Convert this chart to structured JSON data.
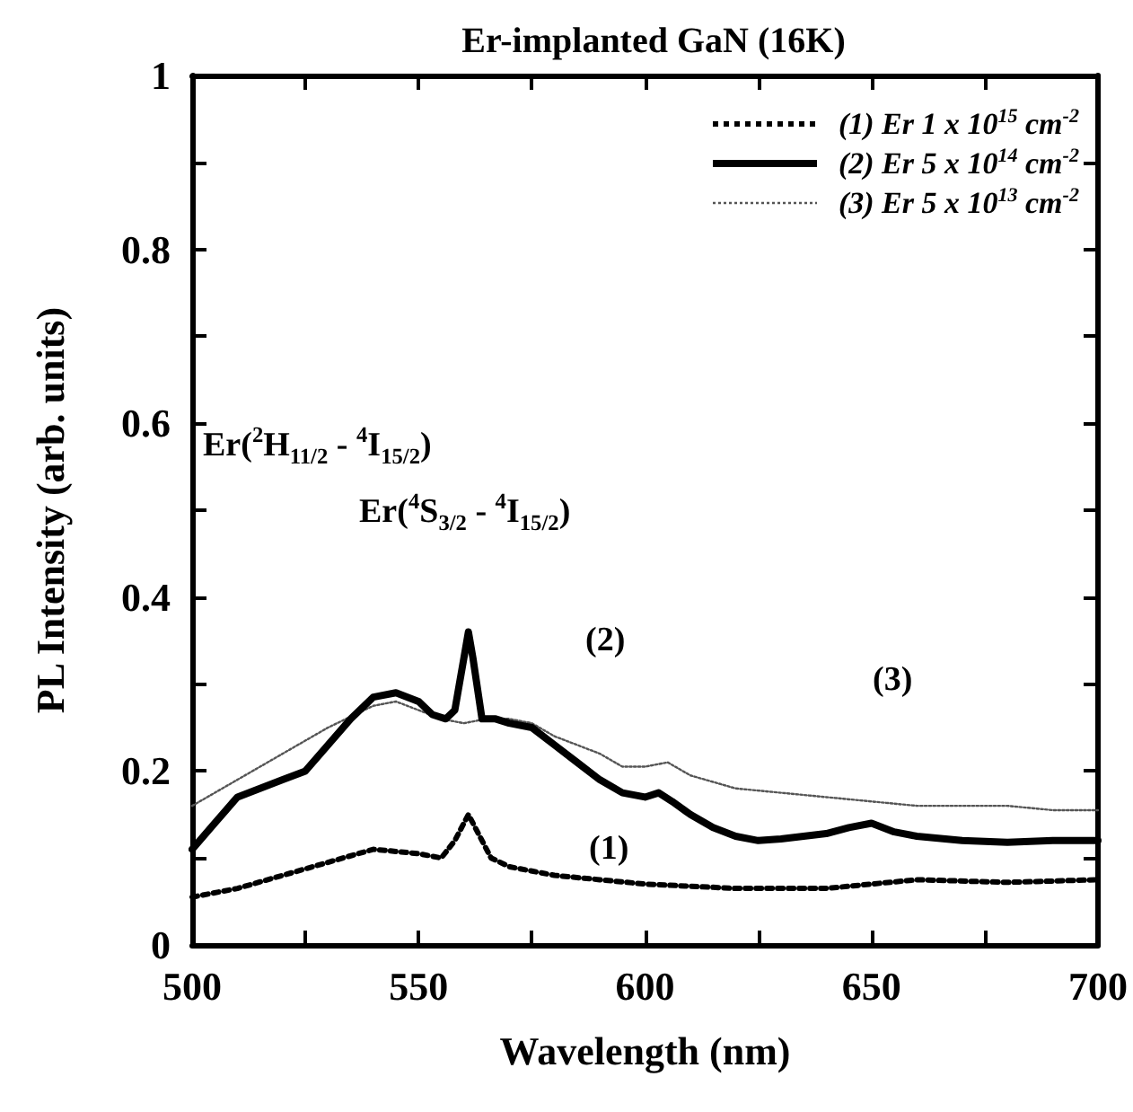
{
  "chart_data": {
    "type": "line",
    "title": "Er-implanted GaN (16K)",
    "xlabel": "Wavelength (nm)",
    "ylabel": "PL Intensity (arb. units)",
    "xlim": [
      500,
      700
    ],
    "xticks": [
      500,
      {
        "value": 525,
        "label": null
      },
      550,
      {
        "value": 575,
        "label": null
      },
      600,
      {
        "value": 625,
        "label": null
      },
      650,
      {
        "value": 675,
        "label": null
      },
      700
    ],
    "ylim": [
      0,
      1
    ],
    "yticks": [
      0,
      {
        "value": 0.1,
        "label": null
      },
      0.2,
      {
        "value": 0.3,
        "label": null
      },
      0.4,
      {
        "value": 0.5,
        "label": null
      },
      0.6,
      {
        "value": 0.7,
        "label": null
      },
      0.8,
      {
        "value": 0.9,
        "label": null
      },
      1
    ],
    "grid": false,
    "legend": "top right",
    "marker": "none",
    "series": [
      {
        "name": "(1) Er  1 x 10$^{15}$ cm$^{-2}$",
        "color": "#000000",
        "line_style": "dotted",
        "x": [
          500,
          510,
          520,
          530,
          540,
          550,
          555,
          558,
          561,
          563,
          566,
          570,
          580,
          590,
          600,
          620,
          640,
          660,
          680,
          700
        ],
        "values": [
          0.055,
          0.065,
          0.08,
          0.095,
          0.11,
          0.105,
          0.1,
          0.12,
          0.15,
          0.13,
          0.1,
          0.09,
          0.08,
          0.075,
          0.07,
          0.065,
          0.065,
          0.075,
          0.072,
          0.075
        ]
      },
      {
        "name": "(2) Er  5 x 10$^{14}$ cm$^{-2}$",
        "color": "#000000",
        "line_style": "solid",
        "x": [
          500,
          505,
          510,
          515,
          520,
          525,
          530,
          535,
          540,
          545,
          550,
          553,
          556,
          558,
          560,
          561,
          562,
          564,
          567,
          570,
          575,
          580,
          585,
          590,
          595,
          600,
          603,
          606,
          610,
          615,
          620,
          625,
          630,
          640,
          645,
          650,
          655,
          660,
          670,
          680,
          690,
          700
        ],
        "values": [
          0.11,
          0.14,
          0.17,
          0.18,
          0.19,
          0.2,
          0.23,
          0.26,
          0.285,
          0.29,
          0.28,
          0.265,
          0.26,
          0.27,
          0.33,
          0.36,
          0.33,
          0.26,
          0.26,
          0.255,
          0.25,
          0.23,
          0.21,
          0.19,
          0.175,
          0.17,
          0.175,
          0.165,
          0.15,
          0.135,
          0.125,
          0.12,
          0.122,
          0.128,
          0.135,
          0.14,
          0.13,
          0.125,
          0.12,
          0.118,
          0.12,
          0.12
        ]
      },
      {
        "name": "(3) Er  5 x 10$^{13}$ cm$^{-2}$",
        "color": "#555555",
        "line_style": "dotted",
        "x": [
          500,
          510,
          520,
          530,
          540,
          545,
          550,
          555,
          560,
          565,
          570,
          575,
          580,
          590,
          595,
          600,
          605,
          610,
          620,
          630,
          640,
          650,
          660,
          670,
          680,
          690,
          700
        ],
        "values": [
          0.16,
          0.19,
          0.22,
          0.25,
          0.275,
          0.28,
          0.27,
          0.26,
          0.255,
          0.26,
          0.26,
          0.255,
          0.24,
          0.22,
          0.205,
          0.205,
          0.21,
          0.195,
          0.18,
          0.175,
          0.17,
          0.165,
          0.16,
          0.16,
          0.16,
          0.155,
          0.155
        ]
      }
    ],
    "annotations": [
      "Er($^{2}$H$_{11/2}$ - $^{4}$I$_{15/2}$)",
      "Er($^{4}$S$_{3/2}$ - $^{4}$I$_{15/2}$)",
      "(1)",
      "(2)",
      "(3)"
    ]
  }
}
